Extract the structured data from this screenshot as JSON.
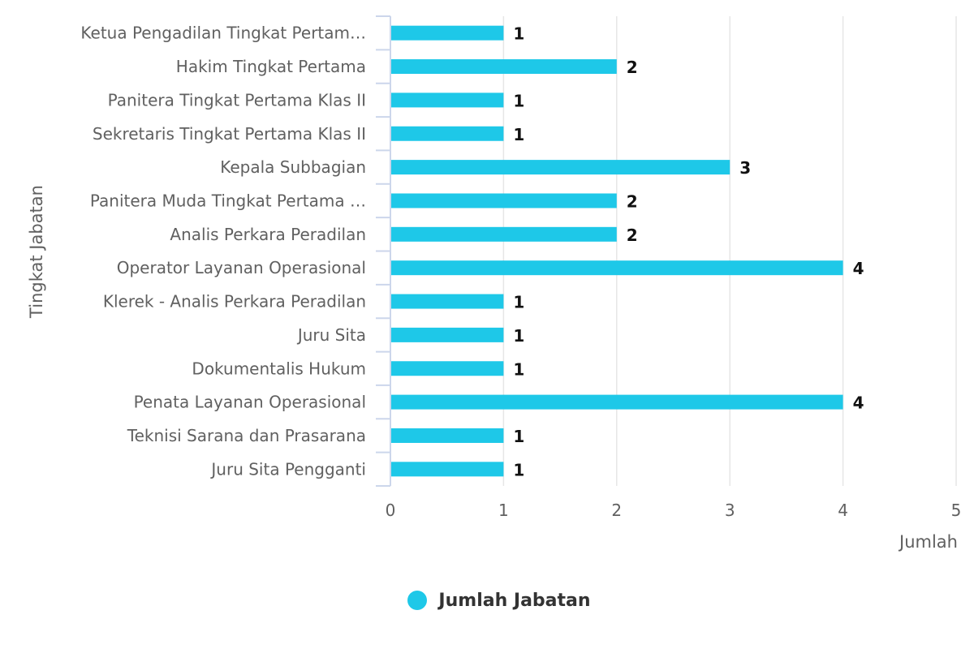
{
  "chart_data": {
    "type": "bar",
    "orientation": "horizontal",
    "categories": [
      "Ketua Pengadilan Tingkat Pertam…",
      "Hakim Tingkat Pertama",
      "Panitera Tingkat Pertama Klas II",
      "Sekretaris Tingkat Pertama Klas II",
      "Kepala Subbagian",
      "Panitera Muda Tingkat Pertama …",
      "Analis Perkara Peradilan",
      "Operator Layanan Operasional",
      "Klerek - Analis Perkara Peradilan",
      "Juru Sita",
      "Dokumentalis Hukum",
      "Penata Layanan Operasional",
      "Teknisi Sarana dan Prasarana",
      "Juru Sita Pengganti"
    ],
    "series": [
      {
        "name": "Jumlah Jabatan",
        "values": [
          1,
          2,
          1,
          1,
          3,
          2,
          2,
          4,
          1,
          1,
          1,
          4,
          1,
          1
        ],
        "color": "#1ec8e8"
      }
    ],
    "xlabel": "Jumlah",
    "ylabel": "Tingkat Jabatan",
    "xlim": [
      0,
      5
    ],
    "xticks": [
      "0",
      "1",
      "2",
      "3",
      "4",
      "5"
    ],
    "data_labels": true,
    "grid": "vertical",
    "legend_position": "bottom-center",
    "colors": {
      "bar": "#1ec8e8",
      "grid": "#e6e6e6",
      "axis": "#ccd6eb",
      "text": "#606060"
    }
  }
}
